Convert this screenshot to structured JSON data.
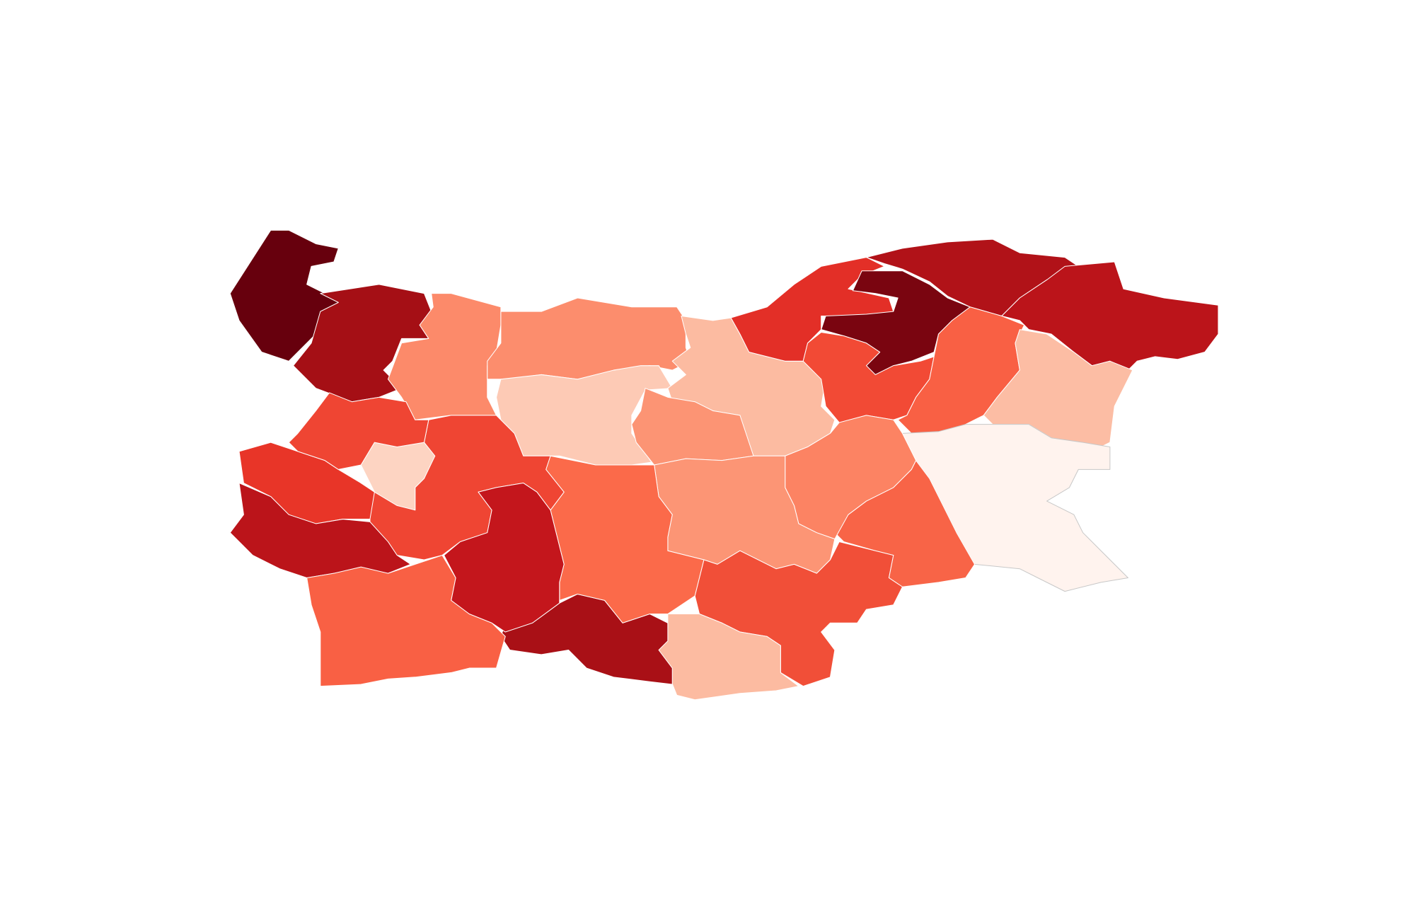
{
  "map": {
    "type": "choropleth",
    "border_color": "#ffffff",
    "regions": [
      {
        "id": "region-1",
        "fill": "#67000d"
      },
      {
        "id": "region-2",
        "fill": "#a50f15"
      },
      {
        "id": "region-3",
        "fill": "#fc8a6a"
      },
      {
        "id": "region-4",
        "fill": "#fc8d6d"
      },
      {
        "id": "region-5",
        "fill": "#fdcab5"
      },
      {
        "id": "region-6",
        "fill": "#fcbba1"
      },
      {
        "id": "region-7",
        "fill": "#fc9474"
      },
      {
        "id": "region-8",
        "fill": "#e32f27"
      },
      {
        "id": "region-9",
        "fill": "#7a0510"
      },
      {
        "id": "region-10",
        "fill": "#f24a35"
      },
      {
        "id": "region-11",
        "fill": "#b11218"
      },
      {
        "id": "region-12",
        "fill": "#bb141a"
      },
      {
        "id": "region-13",
        "fill": "#f96044"
      },
      {
        "id": "region-14",
        "fill": "#fcbda4"
      },
      {
        "id": "region-15",
        "fill": "#fff3ee"
      },
      {
        "id": "region-16",
        "fill": "#f86447"
      },
      {
        "id": "region-17",
        "fill": "#fc8363"
      },
      {
        "id": "region-18",
        "fill": "#fc9575"
      },
      {
        "id": "region-19",
        "fill": "#f14f38"
      },
      {
        "id": "region-20",
        "fill": "#fcbba1"
      },
      {
        "id": "region-21",
        "fill": "#a91016"
      },
      {
        "id": "region-22",
        "fill": "#fb6a4a"
      },
      {
        "id": "region-23",
        "fill": "#ef4533"
      },
      {
        "id": "region-24",
        "fill": "#fdd4c2"
      },
      {
        "id": "region-25",
        "fill": "#e83528"
      },
      {
        "id": "region-26",
        "fill": "#bb141a"
      },
      {
        "id": "region-27",
        "fill": "#f96044"
      },
      {
        "id": "region-28",
        "fill": "#c4161c"
      },
      {
        "id": "region-29",
        "fill": "#ef4533"
      }
    ]
  }
}
